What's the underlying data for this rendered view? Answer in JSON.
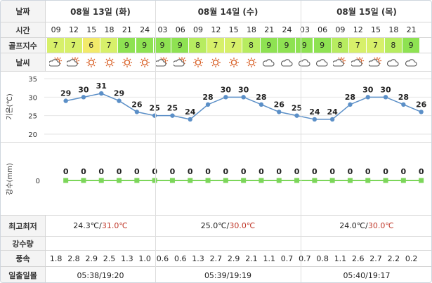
{
  "labels": {
    "date": "날짜",
    "time": "시간",
    "golf_index": "골프지수",
    "weather": "날씨",
    "temp_axis": "기온(℃)",
    "rain_axis": "강수(mm)",
    "max_min": "최고최저",
    "precip_amount": "강수량",
    "wind": "풍속",
    "sunrise_sunset": "일출일몰"
  },
  "days": [
    {
      "title": "08월 13일 (화)",
      "max_min_low": "24.3℃",
      "max_min_high": "31.0℃",
      "sun": "05:38/19:20"
    },
    {
      "title": "08월 14일 (수)",
      "max_min_low": "25.0℃",
      "max_min_high": "30.0℃",
      "sun": "05:39/19:19"
    },
    {
      "title": "08월 15일 (목)",
      "max_min_low": "24.0℃",
      "max_min_high": "30.0℃",
      "sun": "05:40/19:17"
    }
  ],
  "times": [
    "09",
    "12",
    "15",
    "18",
    "21",
    "24",
    "03",
    "06",
    "09",
    "12",
    "15",
    "18",
    "21",
    "24",
    "03",
    "06",
    "09",
    "12",
    "15",
    "18",
    "21"
  ],
  "golf": [
    "7",
    "7",
    "6",
    "7",
    "9",
    "9",
    "9",
    "9",
    "8",
    "7",
    "7",
    "8",
    "9",
    "9",
    "9",
    "9",
    "8",
    "7",
    "7",
    "8",
    "9"
  ],
  "golf_colors": {
    "6": "#f2ea6a",
    "7": "#d7f06a",
    "8": "#b7ec60",
    "9": "#8ee252"
  },
  "weather_icons": [
    "sun-cloud-icon",
    "sun-cloud-icon",
    "sun-icon",
    "sun-icon",
    "sun-icon",
    "sun-icon",
    "sun-cloud-icon",
    "sun-cloud-icon",
    "sun-icon",
    "sun-icon",
    "sun-icon",
    "sun-icon",
    "cloud-icon",
    "cloud-icon",
    "cloud-icon",
    "cloud-icon",
    "sun-cloud-icon",
    "sun-cloud-icon",
    "sun-cloud-icon",
    "cloud-icon",
    "cloud-icon"
  ],
  "wind": [
    "1.8",
    "2.8",
    "2.9",
    "2.5",
    "1.3",
    "1.0",
    "0.6",
    "0.6",
    "1.3",
    "2.7",
    "2.9",
    "2.1",
    "1.1",
    "0.7",
    "0.7",
    "0.8",
    "1.1",
    "2.6",
    "2.7",
    "2.2",
    "0.2"
  ],
  "chart_data": [
    {
      "type": "line",
      "ylabel": "기온(℃)",
      "ylim": [
        20,
        35
      ],
      "yticks": [
        20,
        25,
        30,
        35
      ],
      "x": [
        "09",
        "12",
        "15",
        "18",
        "21",
        "24",
        "03",
        "06",
        "09",
        "12",
        "15",
        "18",
        "21",
        "24",
        "03",
        "06",
        "09",
        "12",
        "15",
        "18",
        "21"
      ],
      "values": [
        29,
        30,
        31,
        29,
        26,
        25,
        25,
        24,
        28,
        30,
        30,
        28,
        26,
        25,
        24,
        24,
        28,
        30,
        30,
        28,
        26
      ],
      "color": "#5b8fc7"
    },
    {
      "type": "line",
      "ylabel": "강수(mm)",
      "yticks": [
        0
      ],
      "x": [
        "09",
        "12",
        "15",
        "18",
        "21",
        "24",
        "03",
        "06",
        "09",
        "12",
        "15",
        "18",
        "21",
        "24",
        "03",
        "06",
        "09",
        "12",
        "15",
        "18",
        "21"
      ],
      "values": [
        0,
        0,
        0,
        0,
        0,
        0,
        0,
        0,
        0,
        0,
        0,
        0,
        0,
        0,
        0,
        0,
        0,
        0,
        0,
        0,
        0
      ],
      "color": "#7cd65a"
    }
  ]
}
